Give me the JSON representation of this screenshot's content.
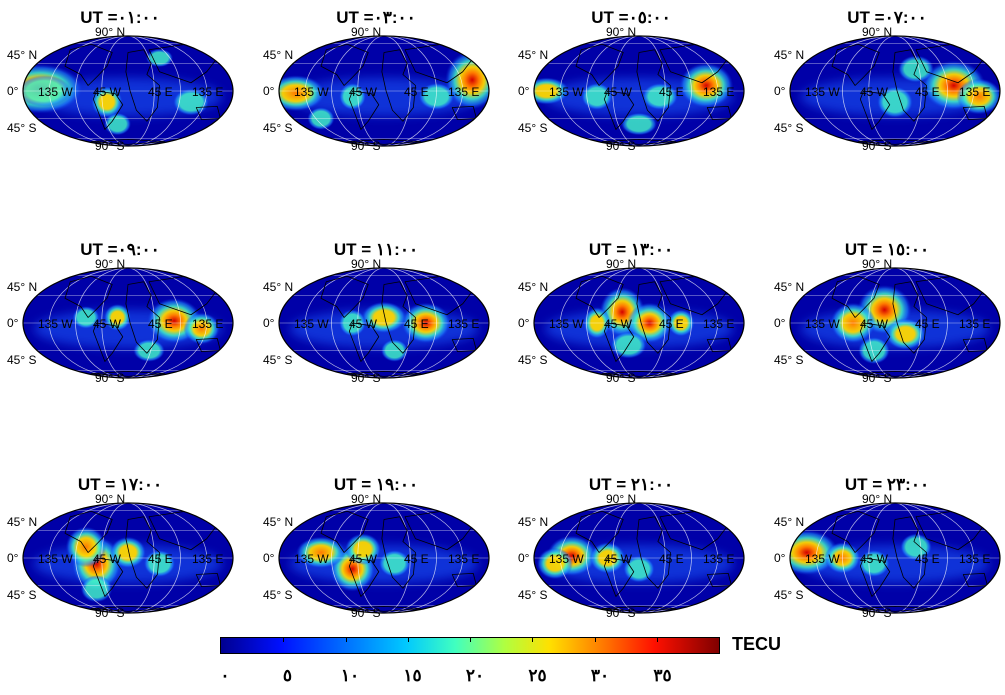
{
  "panels": [
    {
      "title": "UT =٠١:٠٠",
      "hot": [
        [
          0.08,
          0.48,
          1.0,
          0.95,
          0.55
        ],
        [
          0.1,
          0.5,
          0.55,
          0.6,
          0.35
        ],
        [
          0.4,
          0.6,
          0.6,
          0.35,
          0.35
        ],
        [
          0.8,
          0.6,
          0.5,
          0.4,
          0.3
        ],
        [
          0.45,
          0.8,
          0.5,
          0.3,
          0.25
        ],
        [
          0.65,
          0.2,
          0.4,
          0.3,
          0.2
        ]
      ]
    },
    {
      "title": "UT =٠٣:٠٠",
      "hot": [
        [
          0.92,
          0.4,
          0.95,
          0.6,
          0.65
        ],
        [
          0.08,
          0.52,
          0.8,
          0.65,
          0.4
        ],
        [
          0.35,
          0.55,
          0.45,
          0.3,
          0.3
        ],
        [
          0.75,
          0.55,
          0.5,
          0.4,
          0.3
        ],
        [
          0.2,
          0.75,
          0.5,
          0.3,
          0.25
        ]
      ]
    },
    {
      "title": "UT =٠٥:٠٠",
      "hot": [
        [
          0.82,
          0.45,
          1.0,
          0.6,
          0.5
        ],
        [
          0.06,
          0.5,
          0.6,
          0.5,
          0.3
        ],
        [
          0.3,
          0.55,
          0.45,
          0.35,
          0.3
        ],
        [
          0.6,
          0.55,
          0.55,
          0.4,
          0.3
        ],
        [
          0.5,
          0.8,
          0.45,
          0.4,
          0.25
        ]
      ]
    },
    {
      "title": "UT =٠٧:٠٠",
      "hot": [
        [
          0.78,
          0.45,
          1.0,
          0.7,
          0.55
        ],
        [
          0.9,
          0.55,
          0.85,
          0.5,
          0.4
        ],
        [
          0.5,
          0.6,
          0.5,
          0.4,
          0.35
        ],
        [
          0.6,
          0.3,
          0.4,
          0.4,
          0.3
        ]
      ]
    },
    {
      "title": "UT =٠٩:٠٠",
      "hot": [
        [
          0.72,
          0.48,
          1.0,
          0.6,
          0.5
        ],
        [
          0.85,
          0.55,
          0.8,
          0.4,
          0.35
        ],
        [
          0.45,
          0.45,
          0.65,
          0.3,
          0.3
        ],
        [
          0.6,
          0.75,
          0.5,
          0.35,
          0.25
        ],
        [
          0.3,
          0.45,
          0.4,
          0.3,
          0.25
        ]
      ]
    },
    {
      "title": "UT = ١١:٠٠",
      "hot": [
        [
          0.7,
          0.5,
          1.0,
          0.55,
          0.45
        ],
        [
          0.5,
          0.45,
          0.7,
          0.5,
          0.35
        ],
        [
          0.35,
          0.5,
          0.5,
          0.3,
          0.3
        ],
        [
          0.55,
          0.75,
          0.5,
          0.3,
          0.25
        ]
      ]
    },
    {
      "title": "UT = ١٣:٠٠",
      "hot": [
        [
          0.42,
          0.4,
          0.95,
          0.5,
          0.55
        ],
        [
          0.55,
          0.5,
          0.9,
          0.5,
          0.45
        ],
        [
          0.3,
          0.5,
          0.6,
          0.3,
          0.35
        ],
        [
          0.7,
          0.5,
          0.6,
          0.3,
          0.3
        ],
        [
          0.45,
          0.7,
          0.5,
          0.4,
          0.3
        ]
      ]
    },
    {
      "title": "UT = ١٥:٠٠",
      "hot": [
        [
          0.45,
          0.38,
          1.0,
          0.6,
          0.55
        ],
        [
          0.3,
          0.5,
          0.8,
          0.5,
          0.45
        ],
        [
          0.55,
          0.6,
          0.7,
          0.45,
          0.35
        ],
        [
          0.4,
          0.75,
          0.55,
          0.35,
          0.3
        ]
      ]
    },
    {
      "title": "UT = ١٧:٠٠",
      "hot": [
        [
          0.35,
          0.55,
          1.0,
          0.55,
          0.6
        ],
        [
          0.3,
          0.4,
          0.85,
          0.45,
          0.45
        ],
        [
          0.5,
          0.45,
          0.65,
          0.4,
          0.35
        ],
        [
          0.35,
          0.78,
          0.55,
          0.35,
          0.3
        ],
        [
          0.65,
          0.55,
          0.45,
          0.35,
          0.3
        ]
      ]
    },
    {
      "title": "UT = ١٩:٠٠",
      "hot": [
        [
          0.35,
          0.6,
          1.0,
          0.5,
          0.5
        ],
        [
          0.2,
          0.45,
          0.85,
          0.55,
          0.35
        ],
        [
          0.4,
          0.42,
          0.7,
          0.4,
          0.35
        ],
        [
          0.55,
          0.55,
          0.5,
          0.35,
          0.3
        ]
      ]
    },
    {
      "title": "UT = ٢١:٠٠",
      "hot": [
        [
          0.18,
          0.48,
          0.95,
          0.55,
          0.45
        ],
        [
          0.35,
          0.5,
          0.7,
          0.4,
          0.35
        ],
        [
          0.1,
          0.55,
          0.6,
          0.4,
          0.35
        ],
        [
          0.5,
          0.6,
          0.45,
          0.35,
          0.3
        ]
      ]
    },
    {
      "title": "UT = ٢٣:٠٠",
      "hot": [
        [
          0.08,
          0.45,
          1.0,
          0.7,
          0.5
        ],
        [
          0.25,
          0.5,
          0.75,
          0.4,
          0.35
        ],
        [
          0.4,
          0.55,
          0.5,
          0.35,
          0.3
        ],
        [
          0.6,
          0.4,
          0.4,
          0.35,
          0.3
        ]
      ]
    }
  ],
  "labels": {
    "lat_n": "45° N",
    "lat_eq": "0°",
    "lat_s": "45° S",
    "pole_n": "90° N",
    "pole_s": "90° S",
    "lon_135w": "135  W",
    "lon_45w": "45  W",
    "lon_45e": "45  E",
    "lon_135e": "135  E"
  },
  "colorbar": {
    "unit": "TECU",
    "ticks": [
      "٠",
      "٥",
      "١٠",
      "١٥",
      "٢٠",
      "٢٥",
      "٣٠",
      "٣٥"
    ],
    "range": [
      0,
      40
    ]
  },
  "colors": {
    "low": "#0000a8",
    "mid": "#00bfff",
    "high": "#ffd000",
    "max": "#8b0000"
  }
}
